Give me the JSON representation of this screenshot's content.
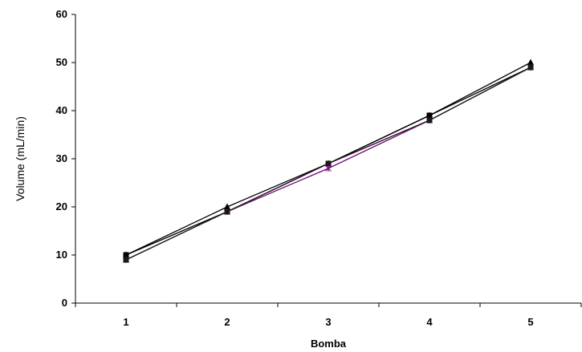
{
  "chart_data": {
    "type": "line",
    "title": "",
    "xlabel": "Bomba",
    "ylabel": "Volume (mL/min)",
    "x": [
      "1",
      "2",
      "3",
      "4",
      "5"
    ],
    "ylim": [
      0,
      60
    ],
    "yticks": [
      "0",
      "10",
      "20",
      "30",
      "40",
      "50",
      "60"
    ],
    "grid": false,
    "legend": "none",
    "series": [
      {
        "values": [
          10,
          20,
          29,
          39,
          50
        ],
        "color": "#000000",
        "marker": "triangle"
      },
      {
        "values": [
          10,
          19,
          29,
          39,
          49
        ],
        "color": "#000000",
        "marker": "square"
      },
      {
        "values": [
          9,
          19,
          28,
          38,
          49
        ],
        "color": "#800080",
        "marker": "star"
      },
      {
        "values": [
          9,
          19,
          29,
          38,
          49
        ],
        "color": "#1a1a1a",
        "marker": "square"
      }
    ]
  }
}
